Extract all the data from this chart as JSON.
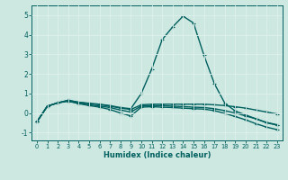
{
  "xlabel": "Humidex (Indice chaleur)",
  "background_color": "#cce8e0",
  "grid_color": "#e0f0ec",
  "line_color": "#005f5f",
  "xlim": [
    -0.5,
    23.5
  ],
  "ylim": [
    -1.4,
    5.5
  ],
  "xticks": [
    0,
    1,
    2,
    3,
    4,
    5,
    6,
    7,
    8,
    9,
    10,
    11,
    12,
    13,
    14,
    15,
    16,
    17,
    18,
    19,
    20,
    21,
    22,
    23
  ],
  "yticks": [
    -1,
    0,
    1,
    2,
    3,
    4,
    5
  ],
  "curves": [
    {
      "x": [
        0,
        1,
        2,
        3,
        4,
        5,
        6,
        7,
        8,
        9,
        10,
        11,
        12,
        13,
        14,
        15,
        16,
        17,
        18,
        19,
        20,
        21,
        22,
        23
      ],
      "y": [
        -0.45,
        0.35,
        0.52,
        0.65,
        0.55,
        0.5,
        0.45,
        0.38,
        0.28,
        0.22,
        1.0,
        2.25,
        3.75,
        4.4,
        4.95,
        4.6,
        2.95,
        1.5,
        0.5,
        0.1,
        -0.1,
        -0.3,
        -0.5,
        -0.62
      ]
    },
    {
      "x": [
        0,
        1,
        2,
        3,
        4,
        5,
        6,
        7,
        8,
        9,
        10,
        11,
        12,
        13,
        14,
        15,
        16,
        17,
        18,
        19,
        20,
        21,
        22,
        23
      ],
      "y": [
        -0.45,
        0.35,
        0.52,
        0.65,
        0.55,
        0.48,
        0.43,
        0.35,
        0.25,
        0.18,
        0.42,
        0.45,
        0.45,
        0.45,
        0.45,
        0.45,
        0.45,
        0.42,
        0.38,
        0.32,
        0.25,
        0.15,
        0.05,
        -0.05
      ]
    },
    {
      "x": [
        0,
        1,
        2,
        3,
        4,
        5,
        6,
        7,
        8,
        9,
        10,
        11,
        12,
        13,
        14,
        15,
        16,
        17,
        18,
        19,
        20,
        21,
        22,
        23
      ],
      "y": [
        -0.45,
        0.35,
        0.52,
        0.62,
        0.5,
        0.42,
        0.36,
        0.28,
        0.15,
        0.05,
        0.36,
        0.38,
        0.38,
        0.35,
        0.33,
        0.3,
        0.28,
        0.22,
        0.12,
        0.0,
        -0.15,
        -0.3,
        -0.48,
        -0.6
      ]
    },
    {
      "x": [
        0,
        1,
        2,
        3,
        4,
        5,
        6,
        7,
        8,
        9,
        10,
        11,
        12,
        13,
        14,
        15,
        16,
        17,
        18,
        19,
        20,
        21,
        22,
        23
      ],
      "y": [
        -0.45,
        0.35,
        0.52,
        0.6,
        0.48,
        0.38,
        0.3,
        0.18,
        0.0,
        -0.15,
        0.3,
        0.32,
        0.3,
        0.28,
        0.25,
        0.22,
        0.2,
        0.12,
        -0.02,
        -0.18,
        -0.35,
        -0.55,
        -0.72,
        -0.85
      ]
    }
  ],
  "marker": "+",
  "markersize": 3.5,
  "linewidth": 1.0
}
